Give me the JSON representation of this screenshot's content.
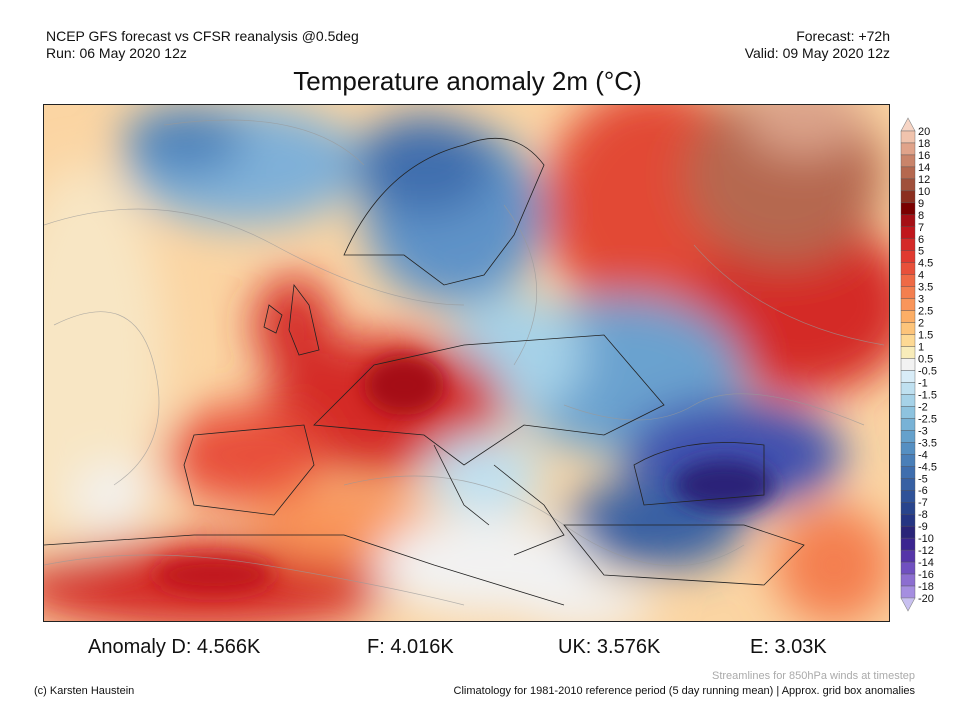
{
  "header": {
    "source": "NCEP GFS forecast vs CFSR reanalysis @0.5deg",
    "run": "Run: 06 May 2020 12z",
    "forecast": "Forecast: +72h",
    "valid": "Valid: 09 May 2020 12z",
    "title": "Temperature anomaly 2m (°C)"
  },
  "colorbar": {
    "labels": [
      "20",
      "18",
      "16",
      "14",
      "12",
      "10",
      "9",
      "8",
      "7",
      "6",
      "5",
      "4.5",
      "4",
      "3.5",
      "3",
      "2.5",
      "2",
      "1.5",
      "1",
      "0.5",
      "-0.5",
      "-1",
      "-1.5",
      "-2",
      "-2.5",
      "-3",
      "-3.5",
      "-4",
      "-4.5",
      "-5",
      "-6",
      "-7",
      "-8",
      "-9",
      "-10",
      "-12",
      "-14",
      "-16",
      "-18",
      "-20"
    ],
    "colors": [
      "#f0c3ad",
      "#e0a38a",
      "#c9846a",
      "#b5684f",
      "#a0503b",
      "#8b2f20",
      "#7a0000",
      "#a50f15",
      "#c0161c",
      "#d42a28",
      "#e03a30",
      "#e8503a",
      "#ef6a45",
      "#f47f4f",
      "#f9955a",
      "#fcae66",
      "#fdc47a",
      "#fdd994",
      "#f8ecba",
      "#f2f2f2",
      "#d8ecf7",
      "#bfe0f0",
      "#a6d2e8",
      "#8ec3df",
      "#78b2d6",
      "#65a1cc",
      "#558fc2",
      "#4a7fb8",
      "#3f6eae",
      "#3760a3",
      "#2f5298",
      "#28448c",
      "#253583",
      "#2a2478",
      "#3b2590",
      "#5535a8",
      "#7050c0",
      "#8c6ed0",
      "#a58ee0"
    ],
    "top_arrow_color": "#f7d5c5",
    "bottom_arrow_color": "#c8c0f0"
  },
  "anomalies": {
    "d": "Anomaly D: 4.566K",
    "f": "F: 4.016K",
    "uk": "UK: 3.576K",
    "e": "E: 3.03K"
  },
  "footer": {
    "streamlines": "Streamlines for 850hPa winds at timestep",
    "copyright": "(c) Karsten Haustein",
    "climatology": "Climatology for 1981-2010 reference period (5 day running mean) | Approx. grid box anomalies"
  }
}
